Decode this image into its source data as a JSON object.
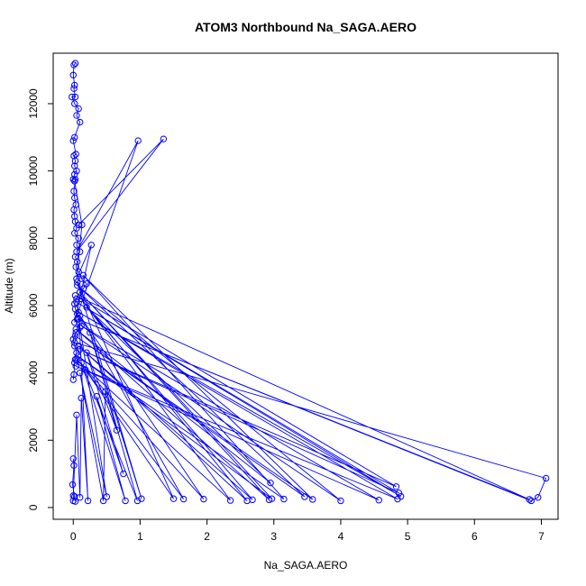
{
  "chart_data": {
    "type": "line",
    "title": "ATOM3 Northbound Na_SAGA.AERO",
    "xlabel": "Na_SAGA.AERO",
    "ylabel": "Altitude (m)",
    "xlim": [
      -0.3,
      7.25
    ],
    "ylim": [
      -350,
      13500
    ],
    "xticks": [
      0,
      1,
      2,
      3,
      4,
      5,
      6,
      7
    ],
    "yticks": [
      0,
      2000,
      4000,
      6000,
      8000,
      10000,
      12000
    ],
    "xtick_labels": [
      "0",
      "1",
      "2",
      "3",
      "4",
      "5",
      "6",
      "7"
    ],
    "ytick_labels": [
      "0",
      "2000",
      "4000",
      "6000",
      "8000",
      "10000",
      "12000"
    ],
    "grid": false,
    "legend": "none",
    "series_color": "#0000ff",
    "marker": "open-circle",
    "series": [
      {
        "x": [
          0.03,
          0.01,
          0.0,
          0.02,
          0.01,
          0.03,
          -0.02,
          0.02,
          0.08,
          0.05,
          0.1,
          0.02,
          0.0,
          0.04,
          0.01,
          0.03,
          0.02,
          0.05,
          0.02,
          0.0,
          0.03,
          0.01,
          0.02,
          0.04,
          0.01,
          0.02,
          0.03,
          0.05,
          0.02,
          0.08,
          0.05,
          0.1,
          0.03,
          0.06,
          0.04,
          0.08,
          0.12,
          0.2,
          0.15,
          0.1,
          0.05,
          0.02,
          0.03,
          0.06,
          0.08,
          0.1,
          0.04,
          0.0,
          0.02,
          0.05,
          0.03,
          0.02,
          0.01,
          0.0
        ],
        "y": [
          13200,
          13150,
          12850,
          12550,
          12450,
          12200,
          12200,
          12000,
          11850,
          11650,
          11450,
          11000,
          10900,
          10500,
          10450,
          10300,
          10150,
          10000,
          9900,
          9750,
          9750,
          9400,
          9200,
          9000,
          8850,
          8650,
          8500,
          8300,
          8150,
          8000,
          7800,
          7600,
          7450,
          7300,
          7150,
          7000,
          6800,
          6650,
          6500,
          6400,
          6200,
          6050,
          5900,
          5750,
          5600,
          5350,
          5200,
          5000,
          4800,
          4600,
          4400,
          4300,
          3950,
          3800
        ]
      },
      {
        "x": [
          0.08,
          1.35,
          0.05,
          0.97,
          0.02,
          0.27,
          0.05,
          0.13,
          0.02
        ],
        "y": [
          8400,
          10950,
          7600,
          10900,
          5500,
          7800,
          6800,
          8400,
          9700
        ]
      },
      {
        "x": [
          0.02,
          7.07,
          6.95,
          6.85,
          0.06,
          6.82,
          0.03,
          4.83,
          0.1,
          4.87,
          0.05,
          4.9,
          0.08,
          4.85,
          0.04,
          4.57,
          0.12,
          4.0,
          0.06,
          3.46,
          0.03,
          3.58,
          0.15,
          3.15,
          0.07,
          2.97,
          0.1,
          2.93,
          0.04,
          2.95,
          0.2,
          2.68,
          0.08,
          2.6,
          0.12,
          2.35,
          0.05,
          1.95,
          0.1,
          1.65,
          0.18,
          1.5,
          0.06,
          1.02,
          0.25,
          0.96,
          0.12,
          0.78,
          0.35,
          0.75,
          0.2,
          0.65,
          0.48,
          0.45,
          0.1,
          0.5,
          0.09,
          0.22,
          0.12,
          0.1,
          0.05,
          0.0,
          0.03
        ],
        "y": [
          4900,
          870,
          300,
          200,
          5600,
          240,
          6300,
          620,
          4700,
          430,
          6100,
          330,
          5800,
          250,
          4200,
          220,
          5400,
          200,
          6600,
          320,
          5100,
          240,
          6900,
          250,
          4500,
          260,
          6400,
          230,
          5300,
          730,
          5950,
          230,
          4800,
          200,
          6200,
          210,
          4400,
          250,
          5700,
          250,
          4100,
          260,
          6700,
          260,
          5200,
          200,
          4300,
          200,
          3300,
          1000,
          4600,
          2300,
          3450,
          200,
          4000,
          320,
          5500,
          200,
          3250,
          300,
          2750,
          350,
          180
        ]
      },
      {
        "x": [
          0.0,
          0.01,
          -0.01,
          0.02,
          0.0
        ],
        "y": [
          1450,
          1250,
          680,
          330,
          200
        ]
      }
    ]
  }
}
